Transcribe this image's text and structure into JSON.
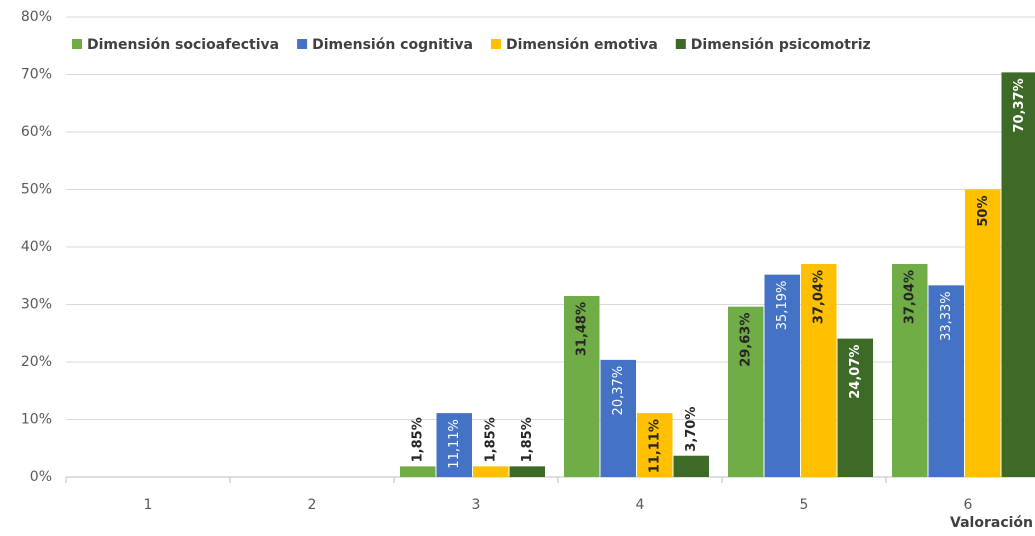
{
  "chart_data": {
    "type": "bar",
    "categories": [
      "1",
      "2",
      "3",
      "4",
      "5",
      "6"
    ],
    "series": [
      {
        "name": "Dimensión socioafectiva",
        "color": "#70ad47",
        "values": [
          null,
          null,
          1.85,
          31.48,
          29.63,
          37.04
        ],
        "value_labels": [
          null,
          null,
          "1,85%",
          "31,48%",
          "29,63%",
          "37,04%"
        ]
      },
      {
        "name": "Dimensión cognitiva",
        "color": "#4472c4",
        "values": [
          null,
          null,
          11.11,
          20.37,
          35.19,
          33.33
        ],
        "value_labels": [
          null,
          null,
          "11,11%",
          "20,37%",
          "35,19%",
          "33,33%"
        ]
      },
      {
        "name": "Dimensión emotiva",
        "color": "#ffc000",
        "values": [
          null,
          null,
          1.85,
          11.11,
          37.04,
          50
        ],
        "value_labels": [
          null,
          null,
          "1,85%",
          "11,11%",
          "37,04%",
          "50%"
        ]
      },
      {
        "name": "Dimensión psicomotriz",
        "color": "#3d6b27",
        "values": [
          null,
          null,
          1.85,
          3.7,
          24.07,
          70.37
        ],
        "value_labels": [
          null,
          null,
          "1,85%",
          "3,70%",
          "24,07%",
          "70,37%"
        ]
      }
    ],
    "xlabel": "Valoración",
    "ylim": [
      0,
      80
    ],
    "yticks": [
      {
        "value": 0,
        "label": "0%"
      },
      {
        "value": 10,
        "label": "10%"
      },
      {
        "value": 20,
        "label": "20%"
      },
      {
        "value": 30,
        "label": "30%"
      },
      {
        "value": 40,
        "label": "40%"
      },
      {
        "value": 50,
        "label": "50%"
      },
      {
        "value": 60,
        "label": "60%"
      },
      {
        "value": 70,
        "label": "70%"
      },
      {
        "value": 80,
        "label": "80%"
      }
    ],
    "grid": true,
    "legend": "top"
  }
}
